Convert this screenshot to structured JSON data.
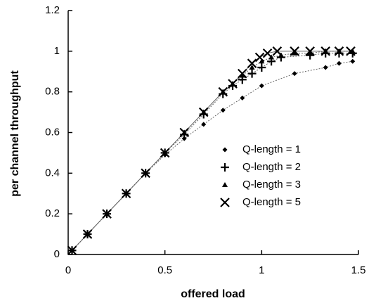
{
  "chart_data": {
    "type": "line",
    "x_label": "offered load",
    "y_label": "per channel throughput",
    "xlim": [
      0,
      1.5
    ],
    "xticks": [
      0,
      0.5,
      1,
      1.5
    ],
    "ylim": [
      0,
      1.2
    ],
    "yticks": [
      0,
      0.2,
      0.4,
      0.6,
      0.8,
      1,
      1.2
    ],
    "legend": "right",
    "series": [
      {
        "name": "Q-length = 1",
        "color": "#000000",
        "marker": "diamond",
        "x": [
          0.02,
          0.1,
          0.2,
          0.3,
          0.4,
          0.5,
          0.6,
          0.7,
          0.8,
          0.9,
          1.0,
          1.17,
          1.33,
          1.4,
          1.47
        ],
        "values": [
          0.02,
          0.1,
          0.2,
          0.3,
          0.4,
          0.49,
          0.57,
          0.64,
          0.71,
          0.77,
          0.83,
          0.89,
          0.92,
          0.94,
          0.95
        ]
      },
      {
        "name": "Q-length = 2",
        "color": "#000000",
        "marker": "plus",
        "x": [
          0.02,
          0.1,
          0.2,
          0.3,
          0.4,
          0.5,
          0.6,
          0.7,
          0.8,
          0.85,
          0.9,
          0.95,
          1.0,
          1.05,
          1.1,
          1.25,
          1.33,
          1.4,
          1.47
        ],
        "values": [
          0.02,
          0.1,
          0.2,
          0.3,
          0.4,
          0.5,
          0.59,
          0.69,
          0.79,
          0.83,
          0.86,
          0.89,
          0.92,
          0.95,
          0.97,
          0.98,
          0.99,
          0.99,
          0.99
        ]
      },
      {
        "name": "Q-length = 3",
        "color": "#000000",
        "marker": "triangle",
        "x": [
          0.02,
          0.1,
          0.2,
          0.3,
          0.4,
          0.5,
          0.6,
          0.7,
          0.8,
          0.85,
          0.9,
          0.95,
          1.0,
          1.05,
          1.1,
          1.17,
          1.25,
          1.33,
          1.4,
          1.47
        ],
        "values": [
          0.02,
          0.1,
          0.2,
          0.3,
          0.4,
          0.5,
          0.6,
          0.7,
          0.8,
          0.84,
          0.88,
          0.92,
          0.95,
          0.97,
          0.98,
          0.99,
          0.99,
          1.0,
          1.0,
          1.0
        ]
      },
      {
        "name": "Q-length = 5",
        "color": "#000000",
        "marker": "x",
        "x": [
          0.02,
          0.1,
          0.2,
          0.3,
          0.4,
          0.5,
          0.6,
          0.7,
          0.8,
          0.85,
          0.9,
          0.95,
          0.99,
          1.03,
          1.08,
          1.17,
          1.25,
          1.33,
          1.4,
          1.46
        ],
        "values": [
          0.02,
          0.1,
          0.2,
          0.3,
          0.4,
          0.5,
          0.6,
          0.7,
          0.8,
          0.84,
          0.89,
          0.94,
          0.97,
          0.99,
          1.0,
          1.0,
          1.0,
          1.0,
          1.0,
          1.0
        ]
      }
    ]
  }
}
